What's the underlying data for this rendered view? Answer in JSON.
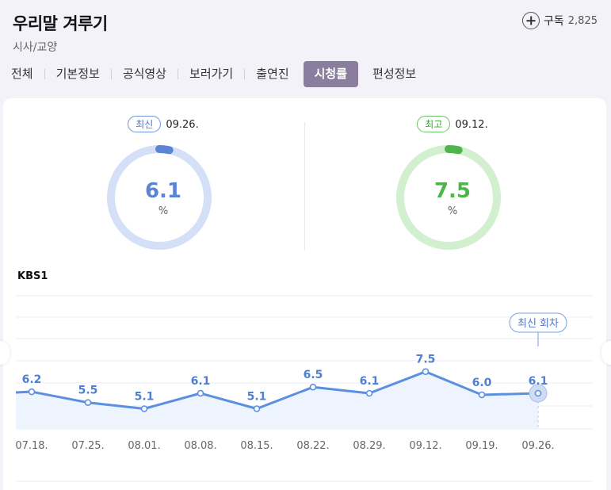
{
  "header": {
    "title": "우리말 겨루기",
    "genre": "시사/교양",
    "subscribe_label": "구독",
    "subscribe_count": "2,825",
    "subscribe_icon": "plus-circle-icon"
  },
  "tabs": [
    {
      "label": "전체",
      "active": false
    },
    {
      "label": "기본정보",
      "active": false
    },
    {
      "label": "공식영상",
      "active": false
    },
    {
      "label": "보러가기",
      "active": false
    },
    {
      "label": "출연진",
      "active": false
    },
    {
      "label": "시청률",
      "active": true
    },
    {
      "label": "편성정보",
      "active": false
    }
  ],
  "ratings": {
    "latest": {
      "badge": "최신",
      "date": "09.26.",
      "value": 6.1,
      "value_text": "6.1",
      "unit": "%",
      "color": "#5b84d6",
      "track": "#d3e0f8"
    },
    "best": {
      "badge": "최고",
      "date": "09.12.",
      "value": 7.5,
      "value_text": "7.5",
      "unit": "%",
      "color": "#4db549",
      "track": "#d2efd0"
    }
  },
  "channel": "KBS1",
  "chart_data": {
    "type": "line",
    "categories": [
      "07.18.",
      "07.25.",
      "08.01.",
      "08.08.",
      "08.15.",
      "08.22.",
      "08.29.",
      "09.12.",
      "09.19.",
      "09.26."
    ],
    "values": [
      6.2,
      5.5,
      5.1,
      6.1,
      5.1,
      6.5,
      6.1,
      7.5,
      6.0,
      6.1
    ],
    "value_labels": [
      "6.2",
      "5.5",
      "5.1",
      "6.1",
      "5.1",
      "6.5",
      "6.1",
      "7.5",
      "6.0",
      "6.1"
    ],
    "latest_label": "최신 회차",
    "line_color": "#5b8fe0",
    "fill_color": "#eef4fd"
  }
}
